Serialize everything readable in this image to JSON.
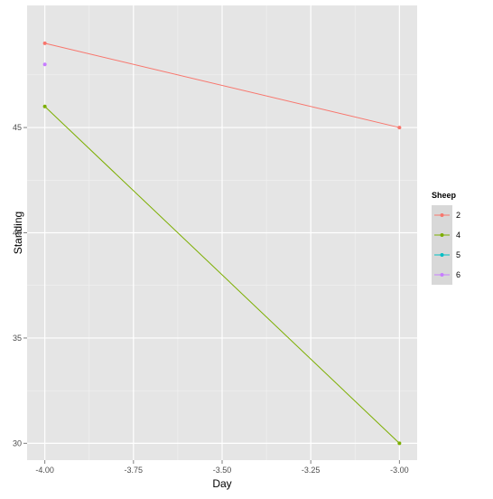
{
  "chart_data": {
    "type": "line",
    "xlabel": "Day",
    "ylabel": "Standing",
    "xlim": [
      -4.05,
      -2.95
    ],
    "ylim": [
      29.2,
      50.8
    ],
    "x_ticks": [
      -4.0,
      -3.75,
      -3.5,
      -3.25,
      -3.0
    ],
    "x_tick_labels": [
      "-4.00",
      "-3.75",
      "-3.50",
      "-3.25",
      "-3.00"
    ],
    "y_ticks": [
      30,
      35,
      40,
      45
    ],
    "y_tick_labels": [
      "30",
      "35",
      "40",
      "45"
    ],
    "grid": true,
    "legend": {
      "title": "Sheep",
      "placement": "right",
      "entries": [
        "2",
        "4",
        "5",
        "6"
      ]
    },
    "series": [
      {
        "name": "2",
        "color": "#F8766D",
        "points": [
          {
            "x": -4.0,
            "y": 49
          },
          {
            "x": -3.0,
            "y": 45
          }
        ]
      },
      {
        "name": "4",
        "color": "#7CAE00",
        "points": [
          {
            "x": -4.0,
            "y": 46
          },
          {
            "x": -3.0,
            "y": 30
          }
        ]
      },
      {
        "name": "5",
        "color": "#00BFC4",
        "points": []
      },
      {
        "name": "6",
        "color": "#C77CFF",
        "points": [
          {
            "x": -4.0,
            "y": 48
          }
        ]
      }
    ]
  }
}
